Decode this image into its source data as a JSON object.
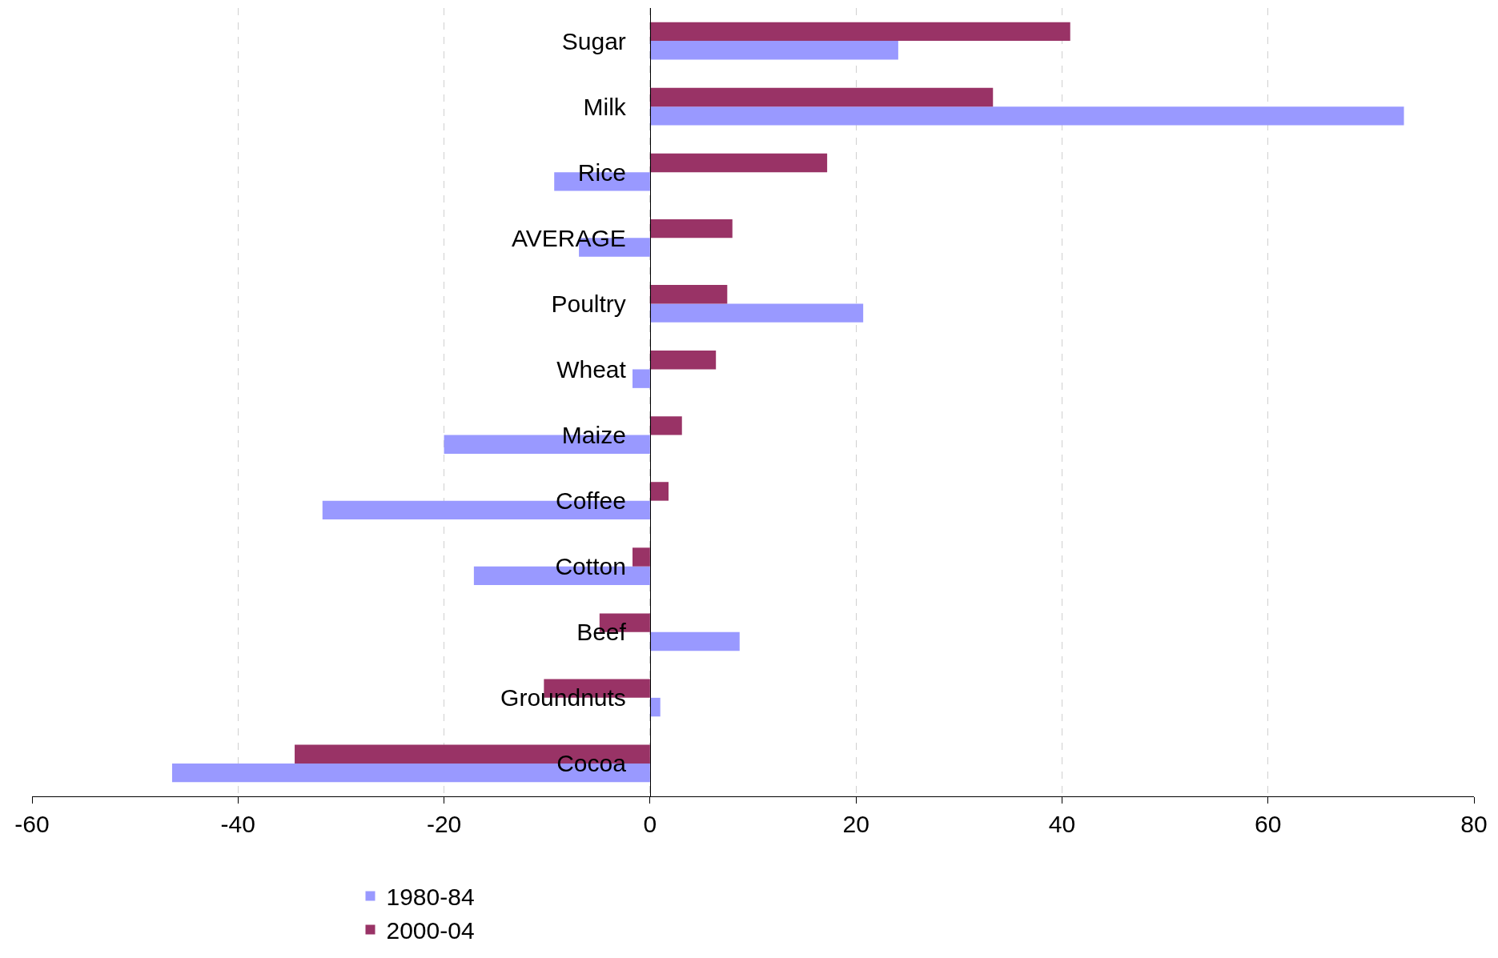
{
  "chart_data": {
    "type": "bar",
    "orientation": "horizontal",
    "categories": [
      "Sugar",
      "Milk",
      "Rice",
      "AVERAGE",
      "Poultry",
      "Wheat",
      "Maize",
      "Coffee",
      "Cotton",
      "Beef",
      "Groundnuts",
      "Cocoa"
    ],
    "series": [
      {
        "name": "1980-84",
        "color": "#9999ff",
        "values": [
          24.1,
          73.2,
          -9.3,
          -6.9,
          20.7,
          -1.7,
          -20.0,
          -31.8,
          -17.1,
          8.7,
          1.0,
          -46.4
        ]
      },
      {
        "name": "2000-04",
        "color": "#993366",
        "values": [
          40.8,
          33.3,
          17.2,
          8.0,
          7.5,
          6.4,
          3.1,
          1.8,
          -1.7,
          -4.9,
          -10.3,
          -34.5
        ]
      }
    ],
    "xlim": [
      -60,
      80
    ],
    "xticks": [
      -60,
      -40,
      -20,
      0,
      20,
      40,
      60,
      80
    ],
    "grid": "x",
    "legend": "bottom"
  }
}
